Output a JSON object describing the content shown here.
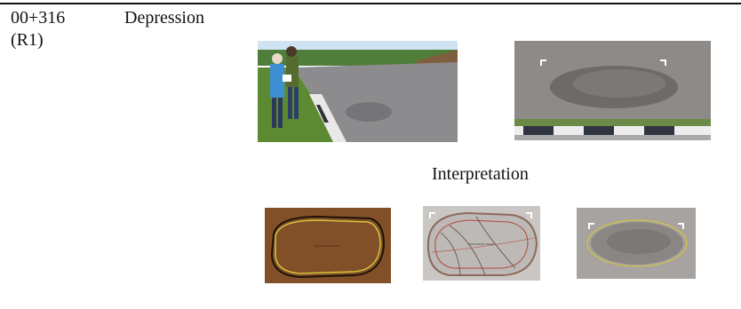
{
  "row": {
    "chainage": "00+316",
    "lane": "(R1)",
    "distress_type": "Depression"
  },
  "interpretation_label": "Interpretation",
  "tiny_label": "000 000000 00000",
  "colors": {
    "asphalt": "#8e8a87",
    "texture_brown": "#7a4a25",
    "outline_yellow": "#d4c43a",
    "contour_red": "#b2473c",
    "rule": "#111111"
  }
}
